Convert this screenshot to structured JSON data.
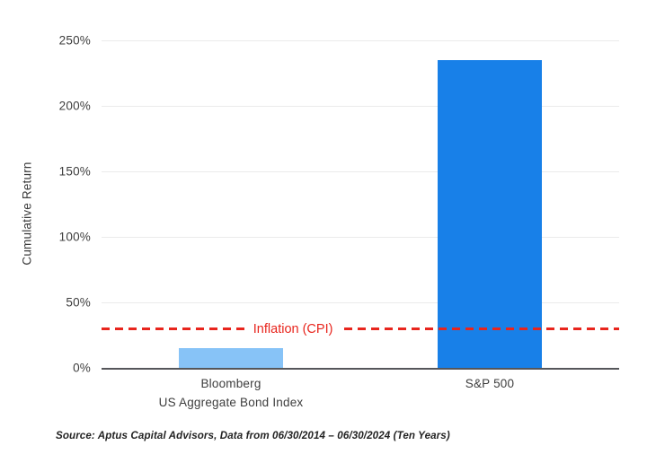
{
  "chart_data": {
    "type": "bar",
    "title": "",
    "categories": [
      "Bloomberg US Aggregate Bond Index",
      "S&P 500"
    ],
    "category_label_lines": [
      [
        "Bloomberg",
        "US Aggregate Bond Index"
      ],
      [
        "S&P 500"
      ]
    ],
    "values": [
      15,
      235
    ],
    "series_colors": [
      "#87C3F7",
      "#1880E8"
    ],
    "xlabel": "",
    "ylabel": "Cumulative Return",
    "y_ticks": [
      "0%",
      "50%",
      "100%",
      "150%",
      "200%",
      "250%"
    ],
    "y_tick_values": [
      0,
      50,
      100,
      150,
      200,
      250
    ],
    "ylim": [
      0,
      267
    ],
    "grid": "horizontal",
    "legend": "none",
    "reference_line": {
      "label": "Inflation (CPI)",
      "value": 30,
      "color": "#E8251D",
      "style": "dashed"
    }
  },
  "footer": {
    "source_note": "Source: Aptus Capital Advisors, Data from 06/30/2014 – 06/30/2024 (Ten Years)"
  }
}
